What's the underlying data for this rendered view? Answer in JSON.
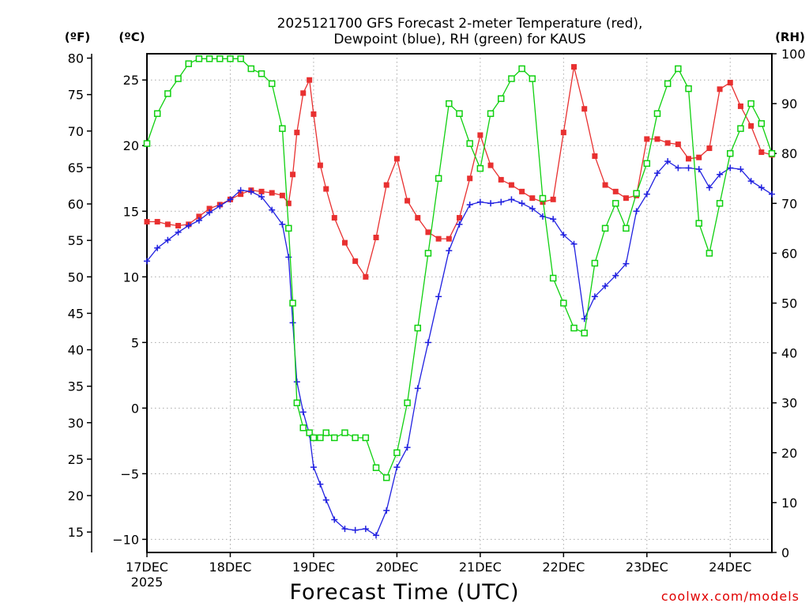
{
  "chart_data": {
    "type": "line",
    "title": [
      "2025121700 GFS Forecast 2-meter Temperature (red),",
      "Dewpoint (blue), RH (green) for KAUS"
    ],
    "xlabel": "Forecast Time (UTC)",
    "credit": "coolwx.com/models",
    "x_units": "days after 2025-12-17 00 UTC",
    "xlim": [
      0,
      7.5
    ],
    "x_ticks": [
      {
        "x": 0,
        "label": "17DEC",
        "sub": "2025"
      },
      {
        "x": 1,
        "label": "18DEC"
      },
      {
        "x": 2,
        "label": "19DEC"
      },
      {
        "x": 3,
        "label": "20DEC"
      },
      {
        "x": 4,
        "label": "21DEC"
      },
      {
        "x": 5,
        "label": "22DEC"
      },
      {
        "x": 6,
        "label": "23DEC"
      },
      {
        "x": 7,
        "label": "24DEC"
      }
    ],
    "y_left_c": {
      "unit": "(ºC)",
      "ylim": [
        -11,
        27
      ],
      "ticks": [
        -10,
        -5,
        0,
        5,
        10,
        15,
        20,
        25
      ]
    },
    "y_left_f": {
      "unit": "(ºF)",
      "ticks": [
        15,
        20,
        25,
        30,
        35,
        40,
        45,
        50,
        55,
        60,
        65,
        70,
        75,
        80
      ]
    },
    "y_right_rh": {
      "unit": "(RH)",
      "ylim": [
        0,
        100
      ],
      "ticks": [
        0,
        10,
        20,
        30,
        40,
        50,
        60,
        70,
        80,
        90,
        100
      ]
    },
    "series": [
      {
        "name": "Temperature",
        "units": "C",
        "axis": "left",
        "color": "#e83030",
        "marker": "square-filled",
        "x": [
          0,
          0.125,
          0.25,
          0.375,
          0.5,
          0.625,
          0.75,
          0.875,
          1.0,
          1.125,
          1.25,
          1.375,
          1.5,
          1.625,
          1.7,
          1.75,
          1.8,
          1.875,
          1.95,
          2.0,
          2.08,
          2.15,
          2.25,
          2.375,
          2.5,
          2.625,
          2.75,
          2.875,
          3.0,
          3.125,
          3.25,
          3.375,
          3.5,
          3.625,
          3.75,
          3.875,
          4.0,
          4.125,
          4.25,
          4.375,
          4.5,
          4.625,
          4.75,
          4.875,
          5.0,
          5.125,
          5.25,
          5.375,
          5.5,
          5.625,
          5.75,
          5.875,
          6.0,
          6.125,
          6.25,
          6.375,
          6.5,
          6.625,
          6.75,
          6.875,
          7.0,
          7.125,
          7.25,
          7.375,
          7.5
        ],
        "values": [
          14.2,
          14.2,
          14.0,
          13.9,
          14.0,
          14.6,
          15.2,
          15.5,
          15.9,
          16.3,
          16.6,
          16.5,
          16.4,
          16.2,
          15.6,
          17.8,
          21.0,
          24.0,
          25.0,
          22.4,
          18.5,
          16.7,
          14.5,
          12.6,
          11.2,
          10.0,
          13.0,
          17.0,
          19.0,
          15.8,
          14.5,
          13.4,
          12.9,
          12.9,
          14.5,
          17.5,
          20.8,
          18.5,
          17.4,
          17.0,
          16.5,
          16.0,
          15.7,
          15.9,
          21.0,
          26.0,
          22.8,
          19.2,
          17.0,
          16.5,
          16.0,
          16.2,
          20.5,
          20.5,
          20.2,
          20.1,
          19.0,
          19.1,
          19.8,
          24.3,
          24.8,
          23.0,
          21.5,
          19.5,
          19.3
        ]
      },
      {
        "name": "Dewpoint",
        "units": "C",
        "axis": "left",
        "color": "#2020e0",
        "marker": "plus",
        "x": [
          0,
          0.125,
          0.25,
          0.375,
          0.5,
          0.625,
          0.75,
          0.875,
          1.0,
          1.125,
          1.25,
          1.375,
          1.5,
          1.625,
          1.7,
          1.75,
          1.8,
          1.875,
          1.95,
          2.0,
          2.08,
          2.15,
          2.25,
          2.375,
          2.5,
          2.625,
          2.75,
          2.875,
          3.0,
          3.125,
          3.25,
          3.375,
          3.5,
          3.625,
          3.75,
          3.875,
          4.0,
          4.125,
          4.25,
          4.375,
          4.5,
          4.625,
          4.75,
          4.875,
          5.0,
          5.125,
          5.25,
          5.375,
          5.5,
          5.625,
          5.75,
          5.875,
          6.0,
          6.125,
          6.25,
          6.375,
          6.5,
          6.625,
          6.75,
          6.875,
          7.0,
          7.125,
          7.25,
          7.375,
          7.5
        ],
        "values": [
          11.2,
          12.2,
          12.8,
          13.4,
          13.9,
          14.3,
          14.9,
          15.4,
          15.9,
          16.6,
          16.5,
          16.1,
          15.1,
          14.0,
          11.5,
          6.5,
          2.0,
          -0.3,
          -2.0,
          -4.5,
          -5.8,
          -7.0,
          -8.5,
          -9.2,
          -9.3,
          -9.2,
          -9.7,
          -7.8,
          -4.5,
          -3.0,
          1.5,
          5.0,
          8.5,
          12.0,
          14.0,
          15.5,
          15.7,
          15.6,
          15.7,
          15.9,
          15.6,
          15.2,
          14.6,
          14.4,
          13.2,
          12.5,
          6.8,
          8.5,
          9.3,
          10.1,
          11.0,
          15.0,
          16.3,
          17.9,
          18.8,
          18.3,
          18.3,
          18.2,
          16.8,
          17.8,
          18.3,
          18.2,
          17.3,
          16.8,
          16.3
        ]
      },
      {
        "name": "RH",
        "units": "%",
        "axis": "right",
        "color": "#10d010",
        "marker": "square-open",
        "x": [
          0,
          0.125,
          0.25,
          0.375,
          0.5,
          0.625,
          0.75,
          0.875,
          1.0,
          1.125,
          1.25,
          1.375,
          1.5,
          1.625,
          1.7,
          1.75,
          1.8,
          1.875,
          1.95,
          2.0,
          2.08,
          2.15,
          2.25,
          2.375,
          2.5,
          2.625,
          2.75,
          2.875,
          3.0,
          3.125,
          3.25,
          3.375,
          3.5,
          3.625,
          3.75,
          3.875,
          4.0,
          4.125,
          4.25,
          4.375,
          4.5,
          4.625,
          4.75,
          4.875,
          5.0,
          5.125,
          5.25,
          5.375,
          5.5,
          5.625,
          5.75,
          5.875,
          6.0,
          6.125,
          6.25,
          6.375,
          6.5,
          6.625,
          6.75,
          6.875,
          7.0,
          7.125,
          7.25,
          7.375,
          7.5
        ],
        "values": [
          82,
          88,
          92,
          95,
          98,
          99,
          99,
          99,
          99,
          99,
          97,
          96,
          94,
          85,
          65,
          50,
          30,
          25,
          24,
          23,
          23,
          24,
          23,
          24,
          23,
          23,
          17,
          15,
          20,
          30,
          45,
          60,
          75,
          90,
          88,
          82,
          77,
          88,
          91,
          95,
          97,
          95,
          71,
          55,
          50,
          45,
          44,
          58,
          65,
          70,
          65,
          72,
          78,
          88,
          94,
          97,
          93,
          66,
          60,
          70,
          80,
          85,
          90,
          86,
          80
        ]
      }
    ]
  }
}
